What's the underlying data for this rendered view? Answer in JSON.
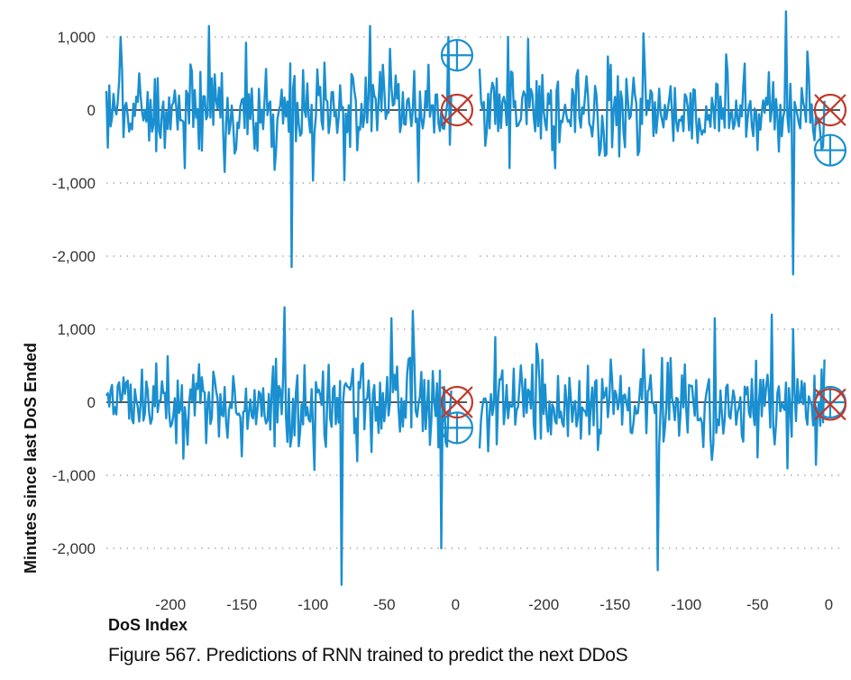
{
  "chart_data": {
    "type": "line",
    "title": "",
    "ylabel": "Minutes since last DoS Ended",
    "xlabel": "DoS Index",
    "ylim": [
      -2500,
      1300
    ],
    "xlim": [
      -245,
      8
    ],
    "yticks": [
      {
        "value": 1000,
        "label": "1,000"
      },
      {
        "value": 0,
        "label": "0"
      },
      {
        "value": -1000,
        "label": "-1,000"
      },
      {
        "value": -2000,
        "label": "-2,000"
      }
    ],
    "xticks": [
      {
        "value": -200,
        "label": "-200"
      },
      {
        "value": -150,
        "label": "-150"
      },
      {
        "value": -100,
        "label": "-100"
      },
      {
        "value": -50,
        "label": "-50"
      },
      {
        "value": 0,
        "label": "0"
      }
    ],
    "grid": "horizontal dotted",
    "series_color": "#1a8fd0",
    "actual_marker_color": "#1a8fd0",
    "predicted_marker_color": "#c0392b",
    "legend": [],
    "panels": [
      {
        "name": "top-left",
        "seed": 11,
        "spikes": [
          [
            -235,
            1000
          ],
          [
            -173,
            1150
          ],
          [
            -115,
            -2150
          ],
          [
            -60,
            1150
          ],
          [
            -5,
            1000
          ]
        ],
        "actual_next": 750,
        "predicted_next": 0
      },
      {
        "name": "top-right",
        "seed": 23,
        "spikes": [
          [
            -225,
            1000
          ],
          [
            -130,
            1050
          ],
          [
            -30,
            1350
          ],
          [
            -25,
            -2250
          ],
          [
            -15,
            800
          ]
        ],
        "actual_next": -550,
        "predicted_next": 0
      },
      {
        "name": "bottom-left",
        "seed": 37,
        "spikes": [
          [
            -120,
            1300
          ],
          [
            -80,
            -2500
          ],
          [
            -45,
            1150
          ],
          [
            -30,
            1250
          ],
          [
            -10,
            -2000
          ]
        ],
        "actual_next": -350,
        "predicted_next": 0
      },
      {
        "name": "bottom-right",
        "seed": 53,
        "spikes": [
          [
            -120,
            -2300
          ],
          [
            -80,
            1150
          ],
          [
            -40,
            1200
          ],
          [
            -25,
            1000
          ],
          [
            -5,
            450
          ]
        ],
        "actual_next": 0,
        "predicted_next": -30
      }
    ]
  },
  "caption": "Figure 567. Predictions of RNN trained to predict the next DDoS"
}
